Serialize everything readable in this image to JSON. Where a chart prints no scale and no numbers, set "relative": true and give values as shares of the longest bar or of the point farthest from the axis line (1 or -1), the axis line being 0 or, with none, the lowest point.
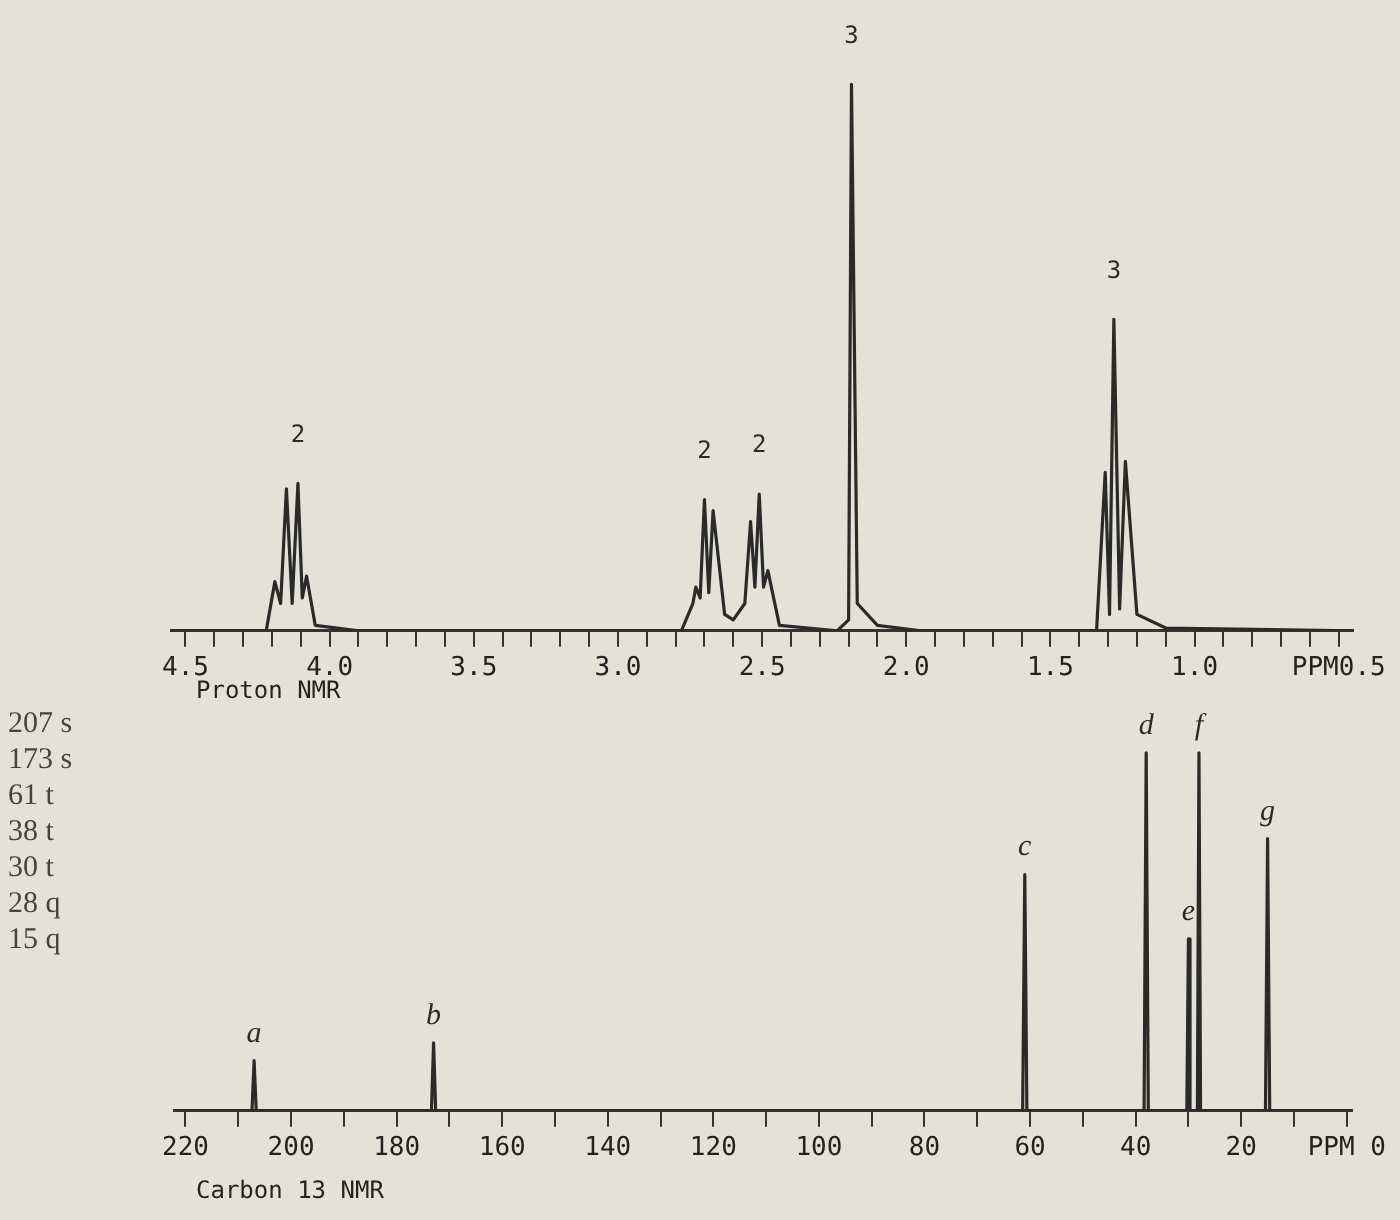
{
  "chart_data": [
    {
      "type": "line",
      "xlabel": "Proton NMR",
      "relative": true,
      "marker": "none",
      "legend": false,
      "xlim": [
        4.55,
        0.45
      ],
      "xticks": [
        4.5,
        {
          "value": 4.4,
          "label": null
        },
        {
          "value": 4.3,
          "label": null
        },
        {
          "value": 4.2,
          "label": null
        },
        {
          "value": 4.1,
          "label": null
        },
        {
          "value": 4.0,
          "label": "4.0"
        },
        {
          "value": 3.9,
          "label": null
        },
        {
          "value": 3.8,
          "label": null
        },
        {
          "value": 3.7,
          "label": null
        },
        {
          "value": 3.6,
          "label": null
        },
        3.5,
        {
          "value": 3.4,
          "label": null
        },
        {
          "value": 3.3,
          "label": null
        },
        {
          "value": 3.2,
          "label": null
        },
        {
          "value": 3.1,
          "label": null
        },
        {
          "value": 3.0,
          "label": "3.0"
        },
        {
          "value": 2.9,
          "label": null
        },
        {
          "value": 2.8,
          "label": null
        },
        {
          "value": 2.7,
          "label": null
        },
        {
          "value": 2.6,
          "label": null
        },
        2.5,
        {
          "value": 2.4,
          "label": null
        },
        {
          "value": 2.3,
          "label": null
        },
        {
          "value": 2.2,
          "label": null
        },
        {
          "value": 2.1,
          "label": null
        },
        {
          "value": 2.0,
          "label": "2.0"
        },
        {
          "value": 1.9,
          "label": null
        },
        {
          "value": 1.8,
          "label": null
        },
        {
          "value": 1.7,
          "label": null
        },
        {
          "value": 1.6,
          "label": null
        },
        1.5,
        {
          "value": 1.4,
          "label": null
        },
        {
          "value": 1.3,
          "label": null
        },
        {
          "value": 1.2,
          "label": null
        },
        {
          "value": 1.1,
          "label": null
        },
        {
          "value": 1.0,
          "label": "1.0"
        },
        {
          "value": 0.9,
          "label": null
        },
        {
          "value": 0.8,
          "label": null
        },
        {
          "value": 0.7,
          "label": null
        },
        {
          "value": 0.6,
          "label": null
        },
        {
          "value": 0.5,
          "label": "PPM0.5"
        }
      ],
      "series": [
        {
          "color": "#2a2a2a",
          "x": [
            4.55,
            4.22,
            4.19,
            4.17,
            4.15,
            4.13,
            4.11,
            4.095,
            4.08,
            4.05,
            3.9,
            2.78,
            2.74,
            2.73,
            2.715,
            2.7,
            2.685,
            2.67,
            2.63,
            2.6,
            2.56,
            2.54,
            2.525,
            2.51,
            2.495,
            2.48,
            2.44,
            2.24,
            2.2,
            2.19,
            2.17,
            2.1,
            1.95,
            1.34,
            1.31,
            1.295,
            1.28,
            1.26,
            1.24,
            1.2,
            1.1,
            0.45
          ],
          "values": [
            0,
            0,
            0.09,
            0.05,
            0.26,
            0.05,
            0.27,
            0.06,
            0.1,
            0.01,
            0,
            0,
            0.05,
            0.08,
            0.06,
            0.24,
            0.07,
            0.22,
            0.03,
            0.02,
            0.05,
            0.2,
            0.08,
            0.25,
            0.08,
            0.11,
            0.01,
            0,
            0.02,
            1,
            0.05,
            0.01,
            0,
            0,
            0.29,
            0.03,
            0.57,
            0.04,
            0.31,
            0.03,
            0.005,
            0
          ]
        }
      ],
      "annotations": [
        {
          "text": "2",
          "x": 4.11,
          "y": 0.27
        },
        {
          "text": "2",
          "x": 2.7,
          "y": 0.24
        },
        {
          "text": "2",
          "x": 2.51,
          "y": 0.25
        },
        {
          "text": "3",
          "x": 2.19,
          "y": 1
        },
        {
          "text": "3",
          "x": 1.28,
          "y": 0.57
        }
      ]
    },
    {
      "type": "line",
      "xlabel": "Carbon 13 NMR",
      "relative": true,
      "marker": "none",
      "legend": false,
      "xlim": [
        222,
        -1
      ],
      "xticks": [
        220,
        {
          "value": 210,
          "label": null
        },
        200,
        {
          "value": 190,
          "label": null
        },
        180,
        {
          "value": 170,
          "label": null
        },
        160,
        {
          "value": 150,
          "label": null
        },
        140,
        {
          "value": 130,
          "label": null
        },
        120,
        {
          "value": 110,
          "label": null
        },
        100,
        {
          "value": 90,
          "label": null
        },
        80,
        {
          "value": 70,
          "label": null
        },
        60,
        {
          "value": 50,
          "label": null
        },
        40,
        {
          "value": 30,
          "label": null
        },
        20,
        {
          "value": 10,
          "label": null
        },
        {
          "value": 0,
          "label": "PPM 0"
        }
      ],
      "series": [
        {
          "color": "#2a2a2a",
          "x": [
            222,
            207.4,
            207,
            206.6,
            173.4,
            173,
            172.6,
            61.4,
            61,
            60.6,
            38.4,
            38,
            37.6,
            30.3,
            30,
            29.7,
            28.3,
            28,
            27.7,
            15.4,
            15,
            14.6,
            -1
          ],
          "values": [
            0,
            0,
            0.14,
            0,
            0,
            0.19,
            0,
            0,
            0.66,
            0,
            0,
            1,
            0,
            0,
            0.48,
            0,
            0,
            1,
            0,
            0,
            0.76,
            0,
            0
          ]
        }
      ],
      "annotations": [
        "207 s",
        "173 s",
        "61 t",
        "38 t",
        "30 t",
        "28 q",
        "15 q",
        {
          "text": "a",
          "x": 207,
          "y": 0.14
        },
        {
          "text": "b",
          "x": 173,
          "y": 0.19
        },
        {
          "text": "c",
          "x": 61,
          "y": 0.66
        },
        {
          "text": "d",
          "x": 38,
          "y": 1
        },
        {
          "text": "e",
          "x": 30,
          "y": 0.48
        },
        {
          "text": "f",
          "x": 28,
          "y": 1
        },
        {
          "text": "g",
          "x": 15,
          "y": 0.76
        }
      ]
    }
  ]
}
